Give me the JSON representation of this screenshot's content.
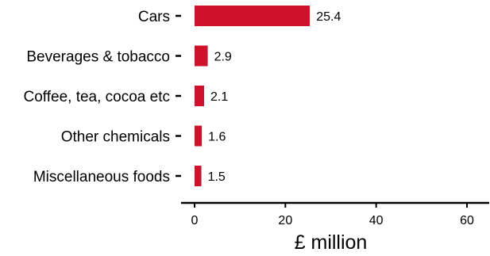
{
  "chart_data": {
    "type": "bar",
    "orientation": "horizontal",
    "categories": [
      "Cars",
      "Beverages & tobacco",
      "Coffee, tea, cocoa etc",
      "Other chemicals",
      "Miscellaneous foods"
    ],
    "values": [
      25.4,
      2.9,
      2.1,
      1.6,
      1.5
    ],
    "value_labels": [
      "25.4",
      "2.9",
      "2.1",
      "1.6",
      "1.5"
    ],
    "xlabel": "£ million",
    "ylabel": "",
    "xlim": [
      0,
      65
    ],
    "xticks": [
      0,
      20,
      40,
      60
    ],
    "grid": false,
    "bar_color": "#d0112b"
  }
}
